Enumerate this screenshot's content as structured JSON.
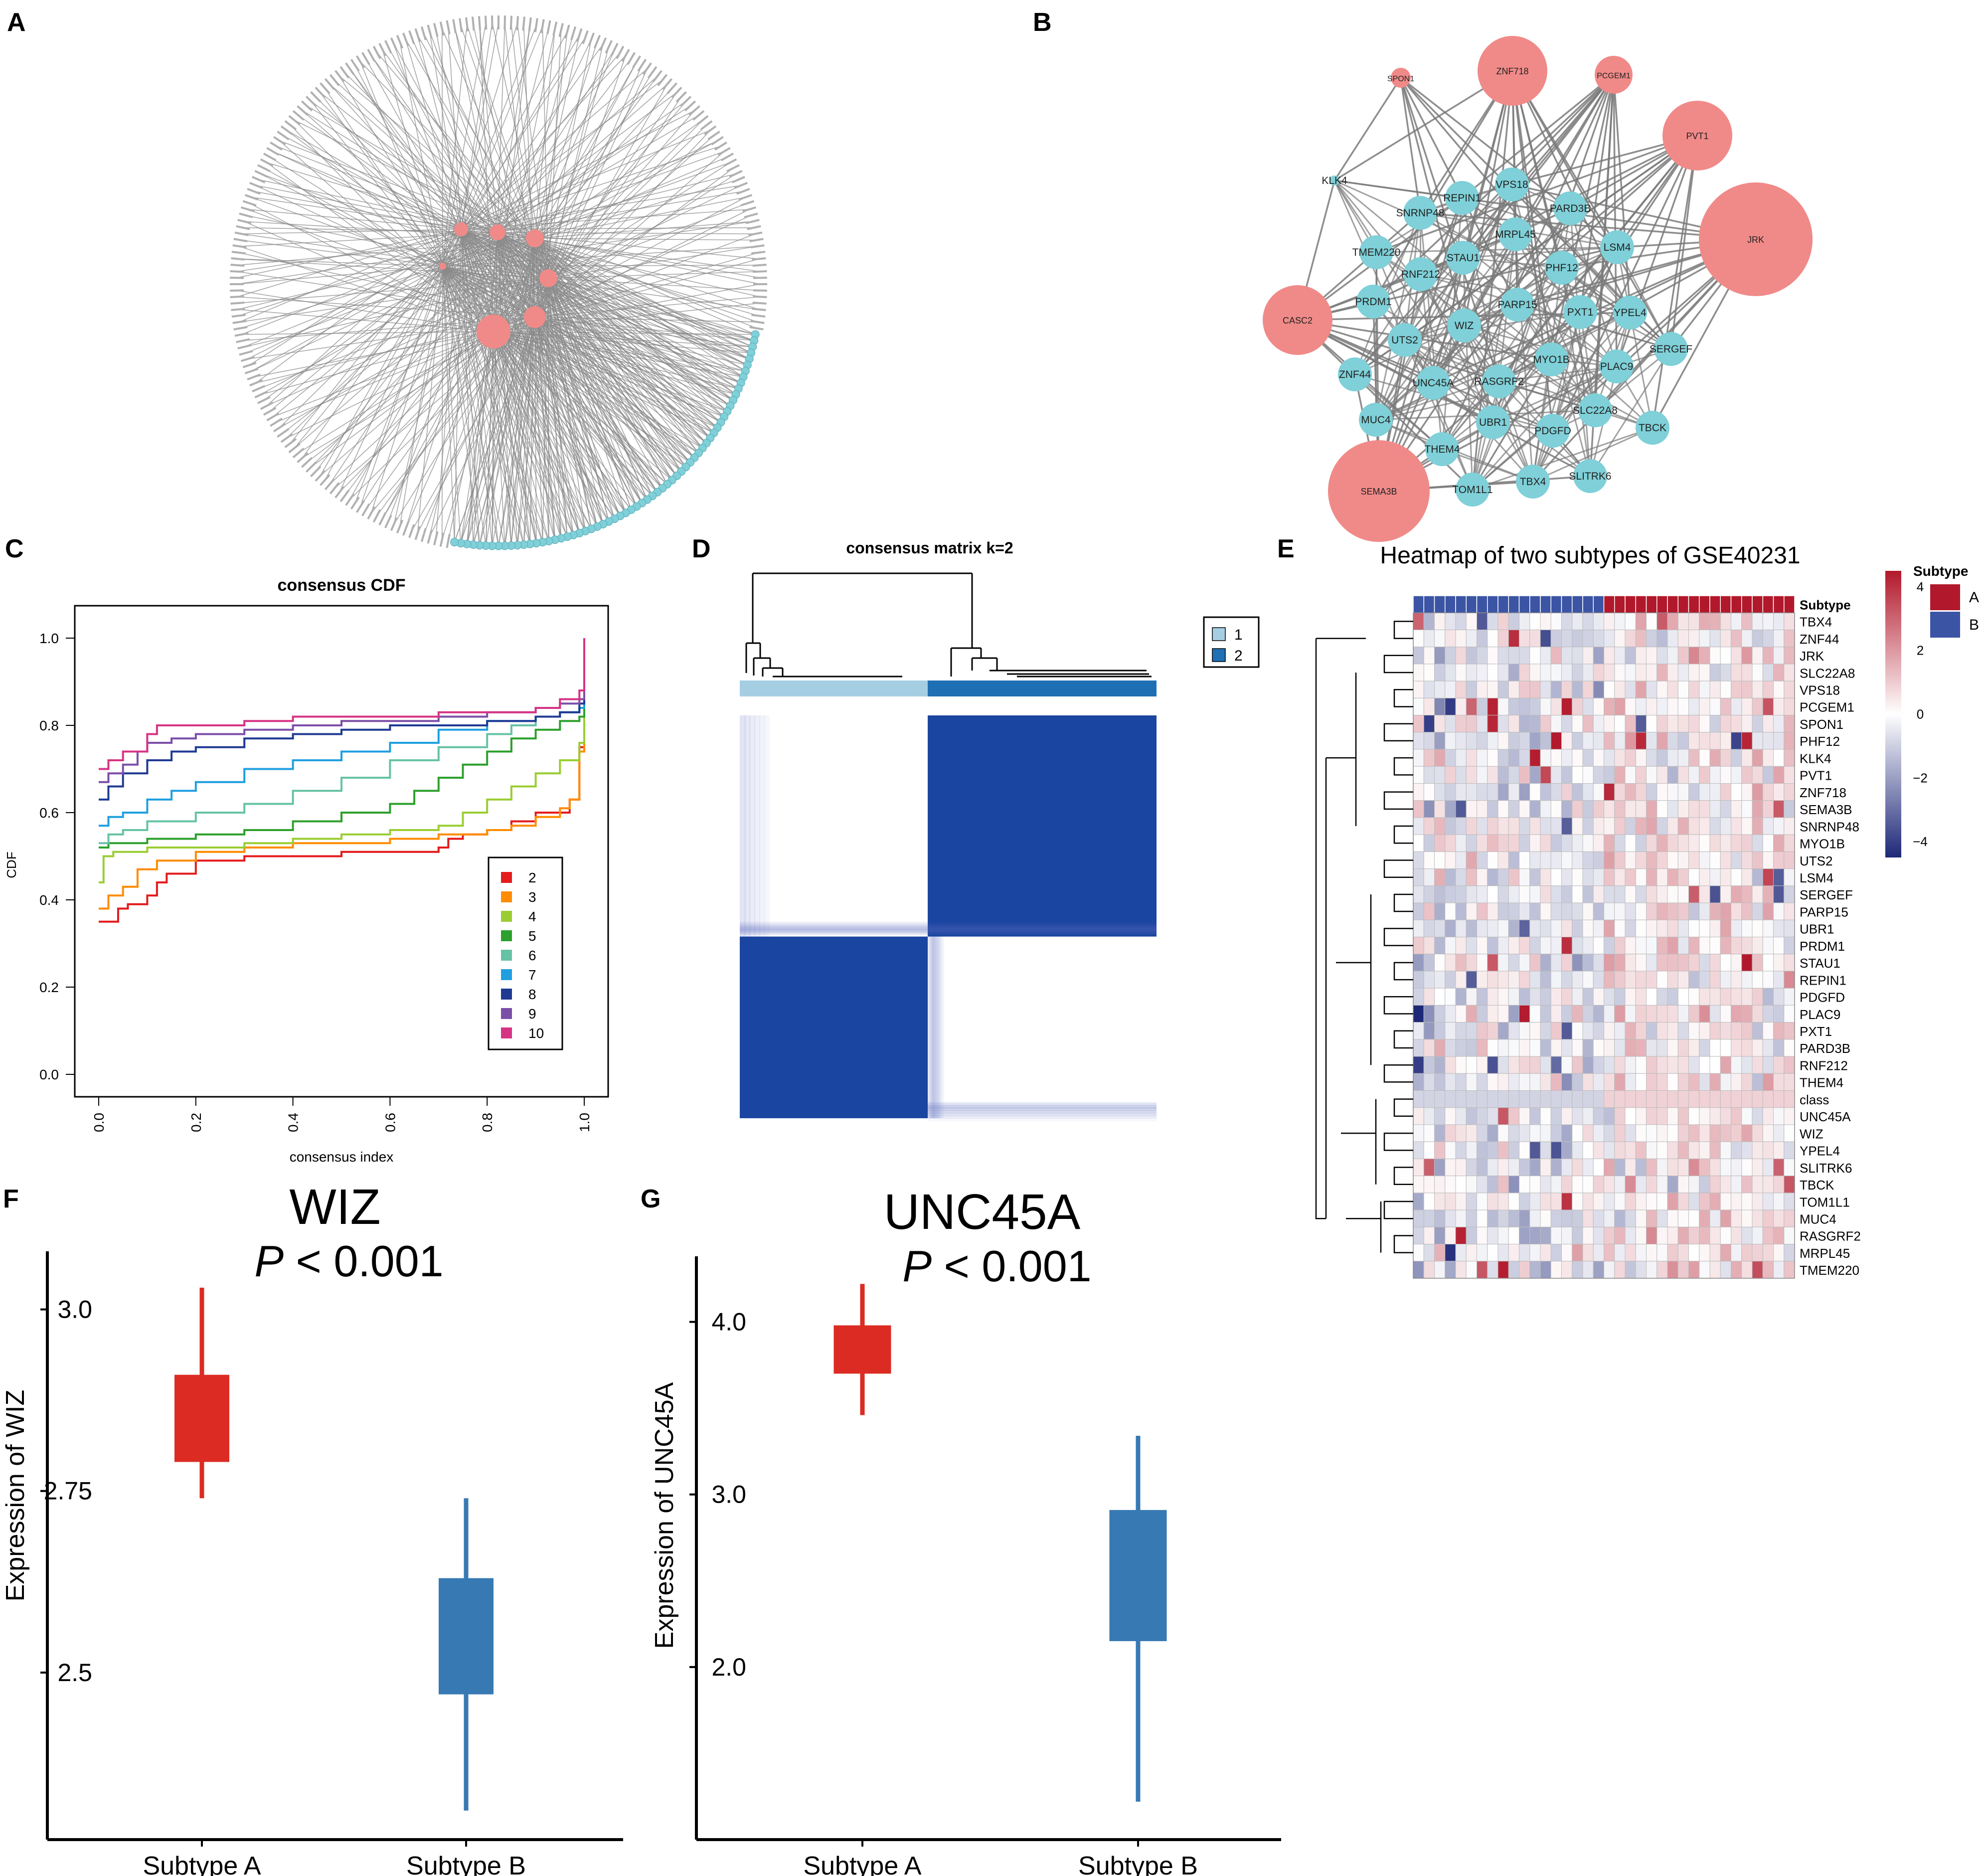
{
  "panels": {
    "A": {
      "label": "A"
    },
    "B": {
      "label": "B",
      "hub_nodes": [
        "SPON1",
        "ZNF718",
        "PCGEM1",
        "PVT1",
        "JRK",
        "CASC2",
        "SEMA3B"
      ],
      "target_nodes": [
        "KLK4",
        "VPS18",
        "REPIN1",
        "SNRNP48",
        "PARD3B",
        "MRPL45",
        "LSM4",
        "TMEM220",
        "STAU1",
        "PHF12",
        "RNF212",
        "PRDM1",
        "PARP15",
        "PXT1",
        "YPEL4",
        "WIZ",
        "UTS2",
        "MYO1B",
        "SERGEF",
        "ZNF44",
        "UNC45A",
        "RASGRF2",
        "PLAC9",
        "SLC22A8",
        "MUC4",
        "UBR1",
        "PDGFD",
        "TBCK",
        "THEM4",
        "TOM1L1",
        "TBX4",
        "SLITRK6"
      ],
      "colors": {
        "hub": "#f08a88",
        "target": "#7fd0d8"
      }
    },
    "C": {
      "label": "C"
    },
    "D": {
      "label": "D"
    },
    "E": {
      "label": "E"
    },
    "F": {
      "label": "F"
    },
    "G": {
      "label": "G"
    }
  },
  "chart_data": [
    {
      "id": "C",
      "type": "line",
      "title": "consensus CDF",
      "xlabel": "consensus index",
      "ylabel": "CDF",
      "xlim": [
        0,
        1
      ],
      "ylim": [
        0,
        1
      ],
      "x_ticks": [
        "0.0",
        "0.2",
        "0.4",
        "0.6",
        "0.8",
        "1.0"
      ],
      "y_ticks": [
        "0.0",
        "0.2",
        "0.4",
        "0.6",
        "0.8",
        "1.0"
      ],
      "legend_position": "bottom-right",
      "series": [
        {
          "name": "2",
          "color": "#e41a1c",
          "x": [
            0,
            0.02,
            0.04,
            0.06,
            0.08,
            0.1,
            0.12,
            0.14,
            0.2,
            0.3,
            0.4,
            0.5,
            0.6,
            0.7,
            0.72,
            0.75,
            0.8,
            0.85,
            0.9,
            0.95,
            0.97,
            0.99,
            1.0
          ],
          "y": [
            0.35,
            0.35,
            0.38,
            0.39,
            0.39,
            0.41,
            0.44,
            0.46,
            0.49,
            0.5,
            0.5,
            0.51,
            0.51,
            0.52,
            0.54,
            0.55,
            0.56,
            0.58,
            0.6,
            0.6,
            0.63,
            0.75,
            0.85
          ]
        },
        {
          "name": "3",
          "color": "#ff8c00",
          "x": [
            0,
            0.02,
            0.05,
            0.08,
            0.12,
            0.2,
            0.3,
            0.4,
            0.5,
            0.6,
            0.7,
            0.8,
            0.85,
            0.9,
            0.95,
            0.97,
            0.99,
            1.0
          ],
          "y": [
            0.38,
            0.41,
            0.43,
            0.47,
            0.49,
            0.51,
            0.52,
            0.53,
            0.53,
            0.54,
            0.55,
            0.56,
            0.57,
            0.59,
            0.61,
            0.63,
            0.74,
            0.84
          ]
        },
        {
          "name": "4",
          "color": "#9acd32",
          "x": [
            0,
            0.01,
            0.03,
            0.1,
            0.2,
            0.3,
            0.4,
            0.5,
            0.6,
            0.7,
            0.75,
            0.8,
            0.85,
            0.9,
            0.95,
            0.99,
            1.0
          ],
          "y": [
            0.44,
            0.5,
            0.51,
            0.52,
            0.52,
            0.53,
            0.54,
            0.55,
            0.56,
            0.57,
            0.6,
            0.63,
            0.66,
            0.69,
            0.72,
            0.76,
            0.85
          ]
        },
        {
          "name": "5",
          "color": "#2ca02c",
          "x": [
            0,
            0.02,
            0.1,
            0.2,
            0.3,
            0.4,
            0.5,
            0.6,
            0.65,
            0.7,
            0.75,
            0.8,
            0.85,
            0.9,
            0.95,
            0.99,
            1.0
          ],
          "y": [
            0.52,
            0.53,
            0.54,
            0.55,
            0.56,
            0.58,
            0.6,
            0.62,
            0.65,
            0.68,
            0.71,
            0.74,
            0.77,
            0.79,
            0.81,
            0.82,
            0.85
          ]
        },
        {
          "name": "6",
          "color": "#66c2a5",
          "x": [
            0,
            0.02,
            0.05,
            0.1,
            0.2,
            0.3,
            0.4,
            0.5,
            0.6,
            0.7,
            0.8,
            0.85,
            0.9,
            0.95,
            0.99,
            1.0
          ],
          "y": [
            0.53,
            0.55,
            0.56,
            0.58,
            0.6,
            0.62,
            0.65,
            0.68,
            0.72,
            0.75,
            0.78,
            0.8,
            0.82,
            0.83,
            0.84,
            0.85
          ]
        },
        {
          "name": "7",
          "color": "#1f9fe0",
          "x": [
            0,
            0.02,
            0.05,
            0.1,
            0.15,
            0.2,
            0.3,
            0.4,
            0.5,
            0.6,
            0.7,
            0.8,
            0.9,
            0.95,
            0.99,
            1.0
          ],
          "y": [
            0.57,
            0.59,
            0.6,
            0.63,
            0.65,
            0.67,
            0.7,
            0.72,
            0.74,
            0.76,
            0.79,
            0.81,
            0.82,
            0.83,
            0.84,
            0.86
          ]
        },
        {
          "name": "8",
          "color": "#1f3a93",
          "x": [
            0,
            0.02,
            0.05,
            0.1,
            0.15,
            0.2,
            0.3,
            0.4,
            0.5,
            0.6,
            0.7,
            0.8,
            0.9,
            0.95,
            0.99,
            1.0
          ],
          "y": [
            0.63,
            0.66,
            0.69,
            0.72,
            0.74,
            0.75,
            0.77,
            0.78,
            0.79,
            0.8,
            0.8,
            0.81,
            0.82,
            0.83,
            0.85,
            0.87
          ]
        },
        {
          "name": "9",
          "color": "#7b4ea8",
          "x": [
            0,
            0.02,
            0.05,
            0.08,
            0.1,
            0.15,
            0.2,
            0.3,
            0.4,
            0.5,
            0.6,
            0.7,
            0.8,
            0.9,
            0.95,
            0.99,
            1.0
          ],
          "y": [
            0.67,
            0.69,
            0.71,
            0.74,
            0.76,
            0.77,
            0.78,
            0.79,
            0.8,
            0.81,
            0.81,
            0.82,
            0.83,
            0.84,
            0.85,
            0.86,
            0.88
          ]
        },
        {
          "name": "10",
          "color": "#d63384",
          "x": [
            0,
            0.02,
            0.05,
            0.1,
            0.12,
            0.2,
            0.3,
            0.4,
            0.5,
            0.6,
            0.7,
            0.8,
            0.9,
            0.95,
            0.99,
            1.0
          ],
          "y": [
            0.7,
            0.72,
            0.74,
            0.78,
            0.8,
            0.8,
            0.81,
            0.82,
            0.82,
            0.82,
            0.83,
            0.83,
            0.84,
            0.86,
            0.88,
            1.0
          ]
        }
      ]
    },
    {
      "id": "D",
      "type": "heatmap",
      "title": "consensus matrix k=2",
      "legend": [
        {
          "name": "1",
          "color": "#a6cee3"
        },
        {
          "name": "2",
          "color": "#1f6fb4"
        }
      ],
      "cluster_sizes": [
        23,
        28
      ],
      "in_cluster_value": 1.0,
      "off_cluster_value": 0.0
    },
    {
      "id": "E",
      "type": "heatmap",
      "title": "Heatmap of two subtypes of GSE40231",
      "annotation_row": "Subtype",
      "annotation_legend_title": "Subtype",
      "annotation_levels": [
        {
          "name": "A",
          "color": "#b2182b"
        },
        {
          "name": "B",
          "color": "#3b54a4"
        }
      ],
      "n_samples_B": 18,
      "n_samples_A": 18,
      "colorbar_ticks": [
        "4",
        "2",
        "0",
        "−2",
        "−4"
      ],
      "colorbar_range": [
        -4.5,
        4.5
      ],
      "rows": [
        "TBX4",
        "ZNF44",
        "JRK",
        "SLC22A8",
        "VPS18",
        "PCGEM1",
        "SPON1",
        "PHF12",
        "KLK4",
        "PVT1",
        "ZNF718",
        "SEMA3B",
        "SNRNP48",
        "MYO1B",
        "UTS2",
        "LSM4",
        "SERGEF",
        "PARP15",
        "UBR1",
        "PRDM1",
        "STAU1",
        "REPIN1",
        "PDGFD",
        "PLAC9",
        "PXT1",
        "PARD3B",
        "RNF212",
        "THEM4",
        "class",
        "UNC45A",
        "WIZ",
        "YPEL4",
        "SLITRK6",
        "TBCK",
        "TOM1L1",
        "MUC4",
        "RASGRF2",
        "MRPL45",
        "TMEM220"
      ]
    },
    {
      "id": "F",
      "type": "box",
      "title": "WIZ",
      "p_label": "P",
      "p_text": " < 0.001",
      "ylabel": "Expression of  WIZ",
      "categories": [
        "Subtype A",
        "Subtype B"
      ],
      "y_ticks": [
        "3.0",
        "2.75",
        "2.5"
      ],
      "y_tick_values": [
        3.0,
        2.75,
        2.5
      ],
      "ylim": [
        2.27,
        3.08
      ],
      "boxes": [
        {
          "name": "Subtype A",
          "whisker_low": 2.74,
          "q1": 2.79,
          "q3": 2.91,
          "whisker_high": 3.03,
          "color": "#dc2b22"
        },
        {
          "name": "Subtype B",
          "whisker_low": 2.31,
          "q1": 2.47,
          "q3": 2.63,
          "whisker_high": 2.74,
          "color": "#3779b3"
        }
      ]
    },
    {
      "id": "G",
      "type": "box",
      "title": "UNC45A",
      "p_label": "P",
      "p_text": " < 0.001",
      "ylabel": "Expression of  UNC45A",
      "categories": [
        "Subtype A",
        "Subtype B"
      ],
      "y_ticks": [
        "4.0",
        "3.0",
        "2.0"
      ],
      "y_tick_values": [
        4.0,
        3.0,
        2.0
      ],
      "ylim": [
        1.0,
        4.38
      ],
      "boxes": [
        {
          "name": "Subtype A",
          "whisker_low": 3.46,
          "q1": 3.7,
          "q3": 3.98,
          "whisker_high": 4.22,
          "color": "#dc2b22"
        },
        {
          "name": "Subtype B",
          "whisker_low": 1.22,
          "q1": 2.15,
          "q3": 2.91,
          "whisker_high": 3.34,
          "color": "#3779b3"
        }
      ]
    }
  ]
}
